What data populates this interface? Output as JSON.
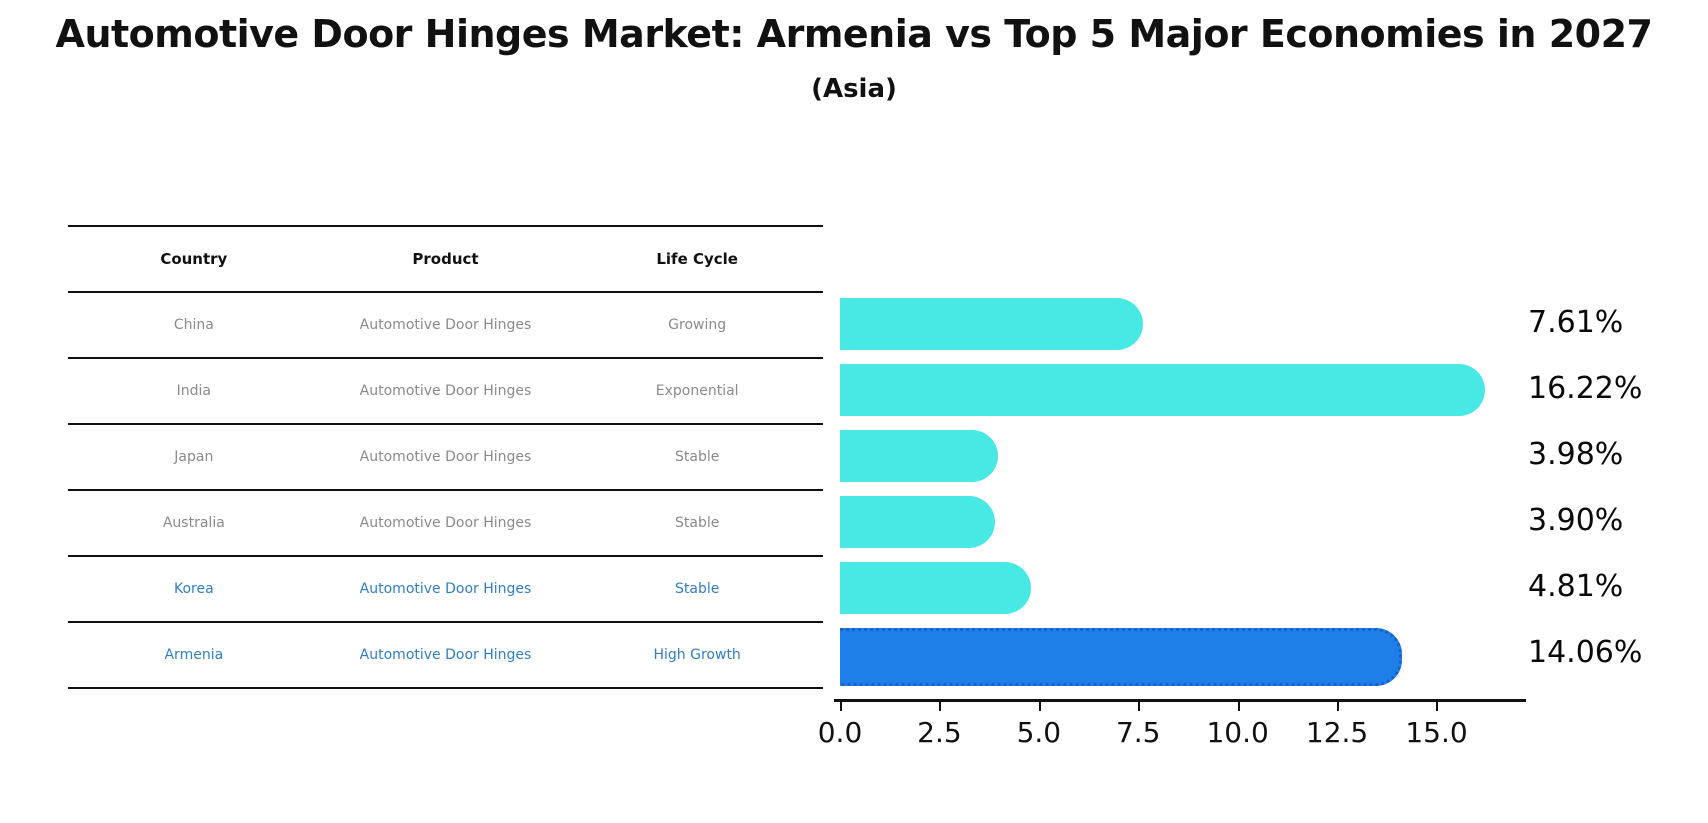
{
  "title": "Automotive Door Hinges Market: Armenia vs Top 5 Major Economies in 2027",
  "subtitle": "(Asia)",
  "table": {
    "headers": [
      "Country",
      "Product",
      "Life Cycle"
    ],
    "rows": [
      {
        "country": "China",
        "product": "Automotive Door Hinges",
        "life_cycle": "Growing",
        "highlight": false
      },
      {
        "country": "India",
        "product": "Automotive Door Hinges",
        "life_cycle": "Exponential",
        "highlight": false
      },
      {
        "country": "Japan",
        "product": "Automotive Door Hinges",
        "life_cycle": "Stable",
        "highlight": false
      },
      {
        "country": "Australia",
        "product": "Automotive Door Hinges",
        "life_cycle": "Stable",
        "highlight": false
      },
      {
        "country": "Korea",
        "product": "Automotive Door Hinges",
        "life_cycle": "Stable",
        "highlight": true
      },
      {
        "country": "Armenia",
        "product": "Automotive Door Hinges",
        "life_cycle": "High Growth",
        "highlight": true
      }
    ]
  },
  "chart_data": {
    "type": "bar",
    "orientation": "horizontal",
    "title": "Automotive Door Hinges Market: Armenia vs Top 5 Major Economies in 2027 (Asia)",
    "categories": [
      "China",
      "India",
      "Japan",
      "Australia",
      "Korea",
      "Armenia"
    ],
    "values": [
      7.61,
      16.22,
      3.98,
      3.9,
      4.81,
      14.06
    ],
    "value_labels": [
      "7.61%",
      "16.22%",
      "3.98%",
      "3.90%",
      "4.81%",
      "14.06%"
    ],
    "highlight_index": 5,
    "xlabel": "",
    "ylabel": "",
    "xlim": [
      0,
      17.1
    ],
    "x_tick_values": [
      0,
      2.5,
      5,
      7.5,
      10,
      12.5,
      15
    ],
    "x_tick_labels": [
      "0.0",
      "2.5",
      "5.0",
      "7.5",
      "10.0",
      "12.5",
      "15.0"
    ],
    "grid": false,
    "legend": false,
    "bar_color": "#48e8e4",
    "highlight_bar_color": "#1f7fe8",
    "highlight_text_color": "#317ec2"
  }
}
